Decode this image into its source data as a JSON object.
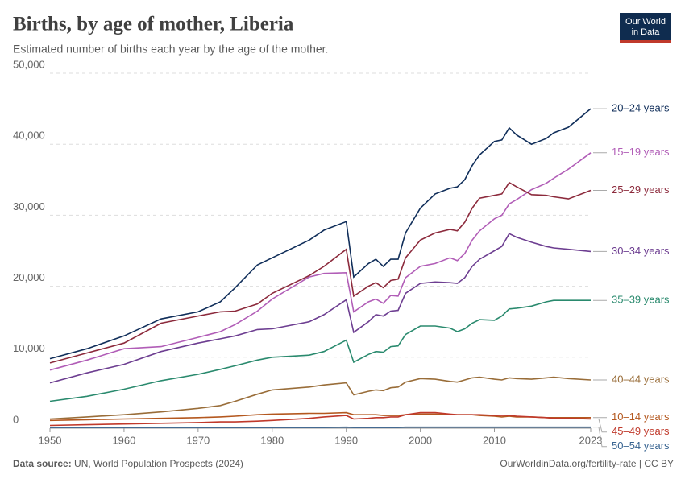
{
  "header": {
    "logo_line1": "Our World",
    "logo_line2": "in Data"
  },
  "footer": {
    "source_label": "Data source:",
    "source": "UN, World Population Prospects (2024)",
    "credit": "OurWorldinData.org/fertility-rate | CC BY"
  },
  "chart_data": {
    "type": "line",
    "title": "Births, by age of mother, Liberia",
    "subtitle": "Estimated number of births each year by the age of the mother.",
    "x": [
      1950,
      1955,
      1960,
      1965,
      1970,
      1973,
      1975,
      1978,
      1980,
      1985,
      1987,
      1990,
      1991,
      1993,
      1994,
      1995,
      1996,
      1997,
      1998,
      2000,
      2002,
      2004,
      2005,
      2006,
      2007,
      2008,
      2010,
      2011,
      2012,
      2013,
      2015,
      2017,
      2018,
      2020,
      2023
    ],
    "xlim": [
      1950,
      2023
    ],
    "xticks": [
      1950,
      1960,
      1970,
      1980,
      1990,
      2000,
      2010,
      2023
    ],
    "ylim": [
      0,
      50000
    ],
    "yticks": [
      0,
      {
        "value": 10000,
        "label": "10,000"
      },
      {
        "value": 20000,
        "label": "20,000"
      },
      {
        "value": 30000,
        "label": "30,000"
      },
      {
        "value": 40000,
        "label": "40,000"
      },
      {
        "value": 50000,
        "label": "50,000"
      }
    ],
    "grid": true,
    "series": [
      {
        "name": "20–24 years",
        "color": "#102e5a",
        "values": [
          9800,
          11200,
          13000,
          15400,
          16400,
          17800,
          19800,
          23000,
          24000,
          26500,
          27900,
          29100,
          21300,
          23200,
          23800,
          22800,
          23800,
          23800,
          27500,
          31000,
          33000,
          33800,
          34000,
          35000,
          37000,
          38500,
          40400,
          40600,
          42300,
          41300,
          40000,
          40800,
          41600,
          42400,
          45000
        ]
      },
      {
        "name": "15–19 years",
        "color": "#b15db7",
        "values": [
          8200,
          9600,
          11200,
          11500,
          12800,
          13600,
          14600,
          16500,
          18200,
          21300,
          21800,
          21900,
          16400,
          17800,
          18200,
          17600,
          18700,
          18600,
          21200,
          22800,
          23200,
          24000,
          23600,
          24600,
          26500,
          27800,
          29500,
          30000,
          31600,
          32200,
          33600,
          34500,
          35200,
          36500,
          38800
        ]
      },
      {
        "name": "25–29 years",
        "color": "#8c2a3c",
        "values": [
          9200,
          10600,
          12000,
          14800,
          15800,
          16400,
          16500,
          17500,
          19000,
          21500,
          22800,
          25200,
          18600,
          20000,
          20500,
          19800,
          20800,
          21000,
          24000,
          26500,
          27500,
          28000,
          27800,
          29000,
          31000,
          32400,
          32800,
          33000,
          34600,
          34000,
          32900,
          32800,
          32600,
          32300,
          33500
        ]
      },
      {
        "name": "30–34 years",
        "color": "#6d3e91",
        "values": [
          6400,
          7800,
          9000,
          10800,
          12000,
          12600,
          13000,
          13900,
          14000,
          15000,
          16000,
          18100,
          13500,
          15000,
          16000,
          15800,
          16500,
          16600,
          19000,
          20400,
          20600,
          20500,
          20400,
          21200,
          22800,
          23800,
          25000,
          25600,
          27400,
          26900,
          26200,
          25600,
          25400,
          25200,
          24900
        ]
      },
      {
        "name": "35–39 years",
        "color": "#2a8a6e",
        "values": [
          3800,
          4500,
          5500,
          6700,
          7600,
          8300,
          8800,
          9600,
          10000,
          10300,
          10800,
          12400,
          9300,
          10400,
          10800,
          10700,
          11500,
          11600,
          13200,
          14400,
          14400,
          14100,
          13600,
          14000,
          14800,
          15300,
          15200,
          15800,
          16800,
          16900,
          17200,
          17800,
          18000,
          18000,
          18000
        ]
      },
      {
        "name": "40–44 years",
        "color": "#996d39",
        "values": [
          1300,
          1600,
          1900,
          2300,
          2800,
          3200,
          3800,
          4800,
          5400,
          5800,
          6100,
          6400,
          4700,
          5200,
          5400,
          5300,
          5700,
          5800,
          6500,
          7000,
          6900,
          6600,
          6500,
          6800,
          7100,
          7200,
          6900,
          6800,
          7100,
          7000,
          6900,
          7100,
          7200,
          7000,
          6800
        ]
      },
      {
        "name": "10–14 years",
        "color": "#b4581f",
        "values": [
          1100,
          1200,
          1300,
          1400,
          1500,
          1600,
          1700,
          1900,
          2000,
          2100,
          2100,
          2200,
          1900,
          1900,
          1900,
          1800,
          1800,
          1800,
          1900,
          2000,
          2000,
          1900,
          1900,
          1900,
          1900,
          1800,
          1700,
          1600,
          1700,
          1600,
          1600,
          1500,
          1500,
          1500,
          1500
        ]
      },
      {
        "name": "45–49 years",
        "color": "#c0392b",
        "values": [
          400,
          500,
          600,
          700,
          800,
          900,
          900,
          1000,
          1100,
          1400,
          1600,
          1800,
          1300,
          1400,
          1500,
          1500,
          1600,
          1600,
          1900,
          2200,
          2200,
          2000,
          1900,
          1900,
          1900,
          1900,
          1800,
          1800,
          1800,
          1700,
          1600,
          1500,
          1400,
          1400,
          1300
        ]
      },
      {
        "name": "50–54 years",
        "color": "#386491",
        "values": [
          100,
          100,
          100,
          100,
          100,
          100,
          100,
          100,
          100,
          100,
          100,
          150,
          100,
          100,
          100,
          100,
          100,
          100,
          150,
          150,
          150,
          150,
          150,
          150,
          150,
          150,
          150,
          150,
          150,
          150,
          150,
          150,
          150,
          150,
          150
        ]
      }
    ]
  }
}
